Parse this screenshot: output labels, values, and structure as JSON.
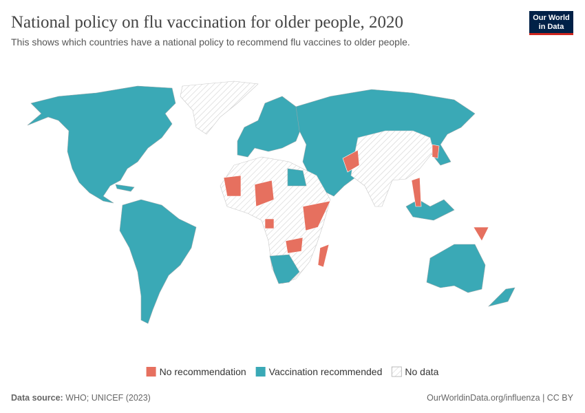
{
  "header": {
    "title": "National policy on flu vaccination for older people, 2020",
    "subtitle": "This shows which countries have a national policy to recommend flu vaccines to older people.",
    "logo": [
      "Our World",
      "in Data"
    ]
  },
  "legend": [
    {
      "label": "No recommendation",
      "color": "#e6705f"
    },
    {
      "label": "Vaccination recommended",
      "color": "#3aa9b6"
    },
    {
      "label": "No data",
      "color": "#e8e8e8"
    }
  ],
  "footer": {
    "source_label": "Data source:",
    "source": "WHO; UNICEF (2023)",
    "url": "OurWorldinData.org/influenza | CC BY"
  }
}
